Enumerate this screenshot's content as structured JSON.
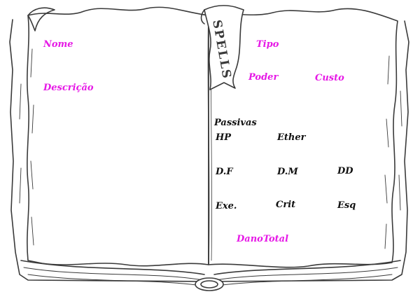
{
  "colors": {
    "label_accent": "#e619e6",
    "label_dark": "#111111",
    "ink": "#3a3a3a",
    "paper": "#ffffff"
  },
  "ribbon": {
    "text": "SPELLS"
  },
  "left_page": {
    "name_label": "Nome",
    "description_label": "Descrição"
  },
  "right_page": {
    "type_label": "Tipo",
    "power_label": "Poder",
    "cost_label": "Custo",
    "passives_label": "Passivas",
    "hp_label": "HP",
    "ether_label": "Ether",
    "df_label": "D.F",
    "dm_label": "D.M",
    "dd_label": "DD",
    "exe_label": "Exe.",
    "crit_label": "Crit",
    "esq_label": "Esq",
    "total_damage_label": "DanoTotal"
  }
}
